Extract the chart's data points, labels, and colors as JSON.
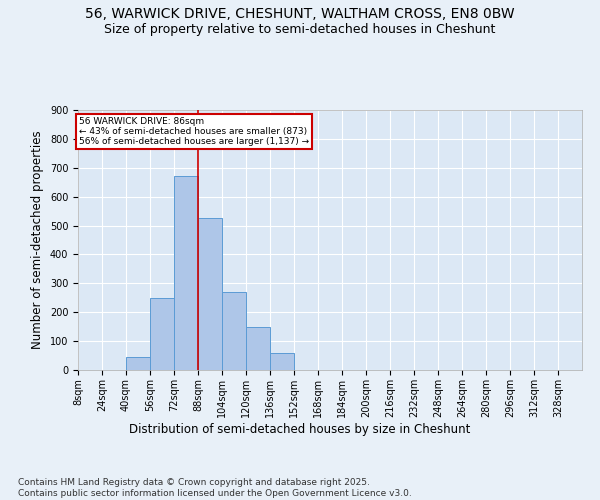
{
  "title_line1": "56, WARWICK DRIVE, CHESHUNT, WALTHAM CROSS, EN8 0BW",
  "title_line2": "Size of property relative to semi-detached houses in Cheshunt",
  "xlabel": "Distribution of semi-detached houses by size in Cheshunt",
  "ylabel": "Number of semi-detached properties",
  "footer": "Contains HM Land Registry data © Crown copyright and database right 2025.\nContains public sector information licensed under the Open Government Licence v3.0.",
  "bin_labels": [
    "8sqm",
    "24sqm",
    "40sqm",
    "56sqm",
    "72sqm",
    "88sqm",
    "104sqm",
    "120sqm",
    "136sqm",
    "152sqm",
    "168sqm",
    "184sqm",
    "200sqm",
    "216sqm",
    "232sqm",
    "248sqm",
    "264sqm",
    "280sqm",
    "296sqm",
    "312sqm",
    "328sqm"
  ],
  "bar_values": [
    0,
    0,
    45,
    250,
    670,
    525,
    270,
    150,
    60,
    0,
    0,
    0,
    0,
    0,
    0,
    0,
    0,
    0,
    0,
    0,
    0
  ],
  "bin_edges": [
    8,
    24,
    40,
    56,
    72,
    88,
    104,
    120,
    136,
    152,
    168,
    184,
    200,
    216,
    232,
    248,
    264,
    280,
    296,
    312,
    328,
    344
  ],
  "vline_x": 88,
  "annotation_title": "56 WARWICK DRIVE: 86sqm",
  "annotation_line2": "← 43% of semi-detached houses are smaller (873)",
  "annotation_line3": "56% of semi-detached houses are larger (1,137) →",
  "bar_color": "#aec6e8",
  "bar_edge_color": "#5b9bd5",
  "vline_color": "#cc0000",
  "annotation_box_color": "#ffffff",
  "annotation_box_edge": "#cc0000",
  "bg_color": "#e8f0f8",
  "plot_bg_color": "#dce8f5",
  "grid_color": "#ffffff",
  "ylim": [
    0,
    900
  ],
  "yticks": [
    0,
    100,
    200,
    300,
    400,
    500,
    600,
    700,
    800,
    900
  ],
  "title_fontsize": 10,
  "subtitle_fontsize": 9,
  "axis_label_fontsize": 8.5,
  "tick_fontsize": 7,
  "footer_fontsize": 6.5
}
